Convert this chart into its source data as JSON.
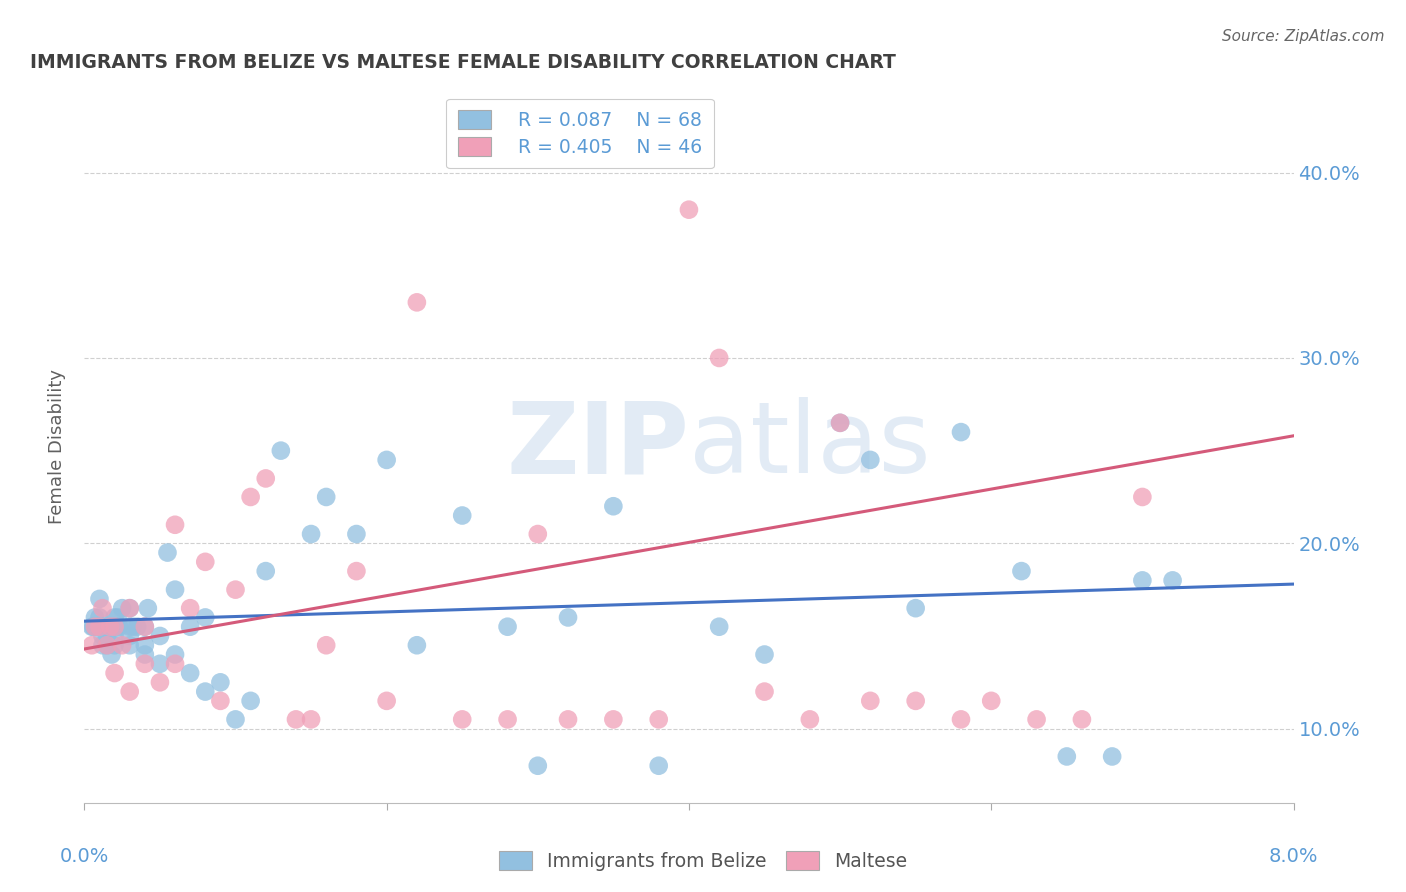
{
  "title": "IMMIGRANTS FROM BELIZE VS MALTESE FEMALE DISABILITY CORRELATION CHART",
  "source": "Source: ZipAtlas.com",
  "ylabel": "Female Disability",
  "ytick_values": [
    0.1,
    0.2,
    0.3,
    0.4
  ],
  "xlim": [
    0.0,
    0.08
  ],
  "ylim": [
    0.06,
    0.445
  ],
  "watermark_part1": "ZIP",
  "watermark_part2": "atlas",
  "legend_r_blue": "R = 0.087",
  "legend_n_blue": "N = 68",
  "legend_r_pink": "R = 0.405",
  "legend_n_pink": "N = 46",
  "blue_label": "Immigrants from Belize",
  "pink_label": "Maltese",
  "blue_color": "#92c0e0",
  "pink_color": "#f0a0b8",
  "blue_line_color": "#4472c4",
  "pink_line_color": "#d45a7a",
  "axis_label_color": "#5b9bd5",
  "title_color": "#404040",
  "source_color": "#666666",
  "ylabel_color": "#606060",
  "grid_color": "#d0d0d0",
  "bg_color": "#ffffff",
  "blue_scatter_x": [
    0.0005,
    0.0006,
    0.0007,
    0.0008,
    0.001,
    0.001,
    0.001,
    0.0012,
    0.0012,
    0.0013,
    0.0015,
    0.0015,
    0.0016,
    0.0017,
    0.0018,
    0.002,
    0.002,
    0.002,
    0.002,
    0.0022,
    0.0023,
    0.0025,
    0.003,
    0.003,
    0.003,
    0.003,
    0.0032,
    0.0035,
    0.004,
    0.004,
    0.004,
    0.0042,
    0.005,
    0.005,
    0.0055,
    0.006,
    0.006,
    0.007,
    0.007,
    0.008,
    0.008,
    0.009,
    0.01,
    0.011,
    0.012,
    0.013,
    0.015,
    0.016,
    0.018,
    0.02,
    0.022,
    0.025,
    0.028,
    0.03,
    0.032,
    0.035,
    0.038,
    0.042,
    0.045,
    0.05,
    0.052,
    0.055,
    0.058,
    0.062,
    0.065,
    0.068,
    0.07,
    0.072
  ],
  "blue_scatter_y": [
    0.155,
    0.155,
    0.16,
    0.155,
    0.155,
    0.16,
    0.17,
    0.145,
    0.15,
    0.155,
    0.145,
    0.15,
    0.155,
    0.155,
    0.14,
    0.145,
    0.15,
    0.155,
    0.16,
    0.16,
    0.155,
    0.165,
    0.145,
    0.15,
    0.155,
    0.165,
    0.155,
    0.155,
    0.14,
    0.145,
    0.155,
    0.165,
    0.135,
    0.15,
    0.195,
    0.14,
    0.175,
    0.13,
    0.155,
    0.12,
    0.16,
    0.125,
    0.105,
    0.115,
    0.185,
    0.25,
    0.205,
    0.225,
    0.205,
    0.245,
    0.145,
    0.215,
    0.155,
    0.08,
    0.16,
    0.22,
    0.08,
    0.155,
    0.14,
    0.265,
    0.245,
    0.165,
    0.26,
    0.185,
    0.085,
    0.085,
    0.18,
    0.18
  ],
  "pink_scatter_x": [
    0.0005,
    0.0007,
    0.001,
    0.0012,
    0.0015,
    0.0017,
    0.002,
    0.002,
    0.0025,
    0.003,
    0.003,
    0.004,
    0.004,
    0.005,
    0.006,
    0.006,
    0.007,
    0.008,
    0.009,
    0.01,
    0.011,
    0.012,
    0.014,
    0.015,
    0.016,
    0.018,
    0.02,
    0.022,
    0.025,
    0.028,
    0.03,
    0.032,
    0.035,
    0.038,
    0.04,
    0.042,
    0.045,
    0.048,
    0.05,
    0.052,
    0.055,
    0.058,
    0.06,
    0.063,
    0.066,
    0.07
  ],
  "pink_scatter_y": [
    0.145,
    0.155,
    0.155,
    0.165,
    0.145,
    0.155,
    0.13,
    0.155,
    0.145,
    0.12,
    0.165,
    0.135,
    0.155,
    0.125,
    0.135,
    0.21,
    0.165,
    0.19,
    0.115,
    0.175,
    0.225,
    0.235,
    0.105,
    0.105,
    0.145,
    0.185,
    0.115,
    0.33,
    0.105,
    0.105,
    0.205,
    0.105,
    0.105,
    0.105,
    0.38,
    0.3,
    0.12,
    0.105,
    0.265,
    0.115,
    0.115,
    0.105,
    0.115,
    0.105,
    0.105,
    0.225
  ],
  "blue_line_x": [
    0.0,
    0.08
  ],
  "blue_line_y": [
    0.158,
    0.178
  ],
  "pink_line_x": [
    0.0,
    0.08
  ],
  "pink_line_y": [
    0.143,
    0.258
  ]
}
